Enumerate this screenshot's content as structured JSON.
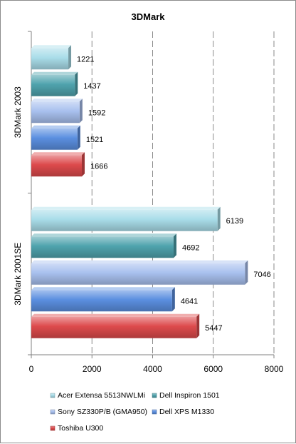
{
  "chart_data": {
    "type": "bar",
    "orientation": "horizontal",
    "title": "3DMark",
    "groups": [
      "3DMark 2003",
      "3DMark 2001SE"
    ],
    "series": [
      {
        "name": "Acer Extensa 5513NWLMi",
        "color": "#a9dde9",
        "values": [
          1221,
          6139
        ]
      },
      {
        "name": "Dell Inspiron 1501",
        "color": "#4fa3ad",
        "values": [
          1437,
          4692
        ]
      },
      {
        "name": "Sony SZ330P/B (GMA950)",
        "color": "#a8c0ee",
        "values": [
          1592,
          7046
        ]
      },
      {
        "name": "Dell XPS M1330",
        "color": "#5b8fe0",
        "values": [
          1521,
          4641
        ]
      },
      {
        "name": "Toshiba U300",
        "color": "#dd4a4c",
        "values": [
          1666,
          5447
        ]
      }
    ],
    "xlim": [
      0,
      8000
    ],
    "xticks": [
      0,
      2000,
      4000,
      6000,
      8000
    ],
    "grid": "vertical-dashed",
    "legend_position": "bottom"
  }
}
